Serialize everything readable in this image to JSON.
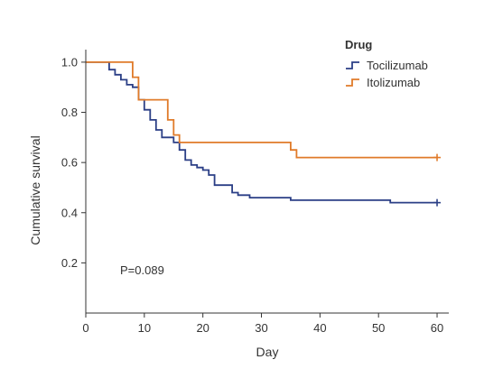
{
  "chart_data": {
    "type": "line",
    "subtype": "kaplan-meier step",
    "xlabel": "Day",
    "ylabel": "Cumulative survival",
    "xlim": [
      0,
      62
    ],
    "ylim": [
      0,
      1.05
    ],
    "xticks": [
      0,
      10,
      20,
      30,
      40,
      50,
      60
    ],
    "yticks": [
      0.2,
      0.4,
      0.6,
      0.8,
      1.0
    ],
    "xtick_labels": [
      "0",
      "10",
      "20",
      "30",
      "40",
      "50",
      "60"
    ],
    "ytick_labels": [
      "0.2",
      "0.4",
      "0.6",
      "0.8",
      "1.0"
    ],
    "grid": false,
    "legend": {
      "title": "Drug",
      "placement": "top-right"
    },
    "annotation": "P=0.089",
    "series": [
      {
        "name": "Tocilizumab",
        "color": "#2b3f86",
        "points": [
          [
            0,
            1.0
          ],
          [
            4,
            1.0
          ],
          [
            4,
            0.97
          ],
          [
            5,
            0.97
          ],
          [
            5,
            0.95
          ],
          [
            6,
            0.95
          ],
          [
            6,
            0.93
          ],
          [
            7,
            0.93
          ],
          [
            7,
            0.91
          ],
          [
            8,
            0.91
          ],
          [
            8,
            0.9
          ],
          [
            9,
            0.9
          ],
          [
            9,
            0.85
          ],
          [
            10,
            0.85
          ],
          [
            10,
            0.81
          ],
          [
            11,
            0.81
          ],
          [
            11,
            0.77
          ],
          [
            12,
            0.77
          ],
          [
            12,
            0.73
          ],
          [
            13,
            0.73
          ],
          [
            13,
            0.7
          ],
          [
            15,
            0.7
          ],
          [
            15,
            0.68
          ],
          [
            16,
            0.68
          ],
          [
            16,
            0.65
          ],
          [
            17,
            0.65
          ],
          [
            17,
            0.61
          ],
          [
            18,
            0.61
          ],
          [
            18,
            0.59
          ],
          [
            19,
            0.59
          ],
          [
            19,
            0.58
          ],
          [
            20,
            0.58
          ],
          [
            20,
            0.57
          ],
          [
            21,
            0.57
          ],
          [
            21,
            0.55
          ],
          [
            22,
            0.55
          ],
          [
            22,
            0.51
          ],
          [
            25,
            0.51
          ],
          [
            25,
            0.48
          ],
          [
            26,
            0.48
          ],
          [
            26,
            0.47
          ],
          [
            28,
            0.47
          ],
          [
            28,
            0.46
          ],
          [
            35,
            0.46
          ],
          [
            35,
            0.45
          ],
          [
            52,
            0.45
          ],
          [
            52,
            0.44
          ],
          [
            60,
            0.44
          ]
        ],
        "censor_x": [
          60
        ],
        "censor_y": [
          0.44
        ]
      },
      {
        "name": "Itolizumab",
        "color": "#e07b2a",
        "points": [
          [
            0,
            1.0
          ],
          [
            8,
            1.0
          ],
          [
            8,
            0.94
          ],
          [
            9,
            0.94
          ],
          [
            9,
            0.85
          ],
          [
            14,
            0.85
          ],
          [
            14,
            0.77
          ],
          [
            15,
            0.77
          ],
          [
            15,
            0.71
          ],
          [
            16,
            0.71
          ],
          [
            16,
            0.68
          ],
          [
            35,
            0.68
          ],
          [
            35,
            0.65
          ],
          [
            36,
            0.65
          ],
          [
            36,
            0.62
          ],
          [
            60,
            0.62
          ]
        ],
        "censor_x": [
          60
        ],
        "censor_y": [
          0.62
        ]
      }
    ]
  }
}
